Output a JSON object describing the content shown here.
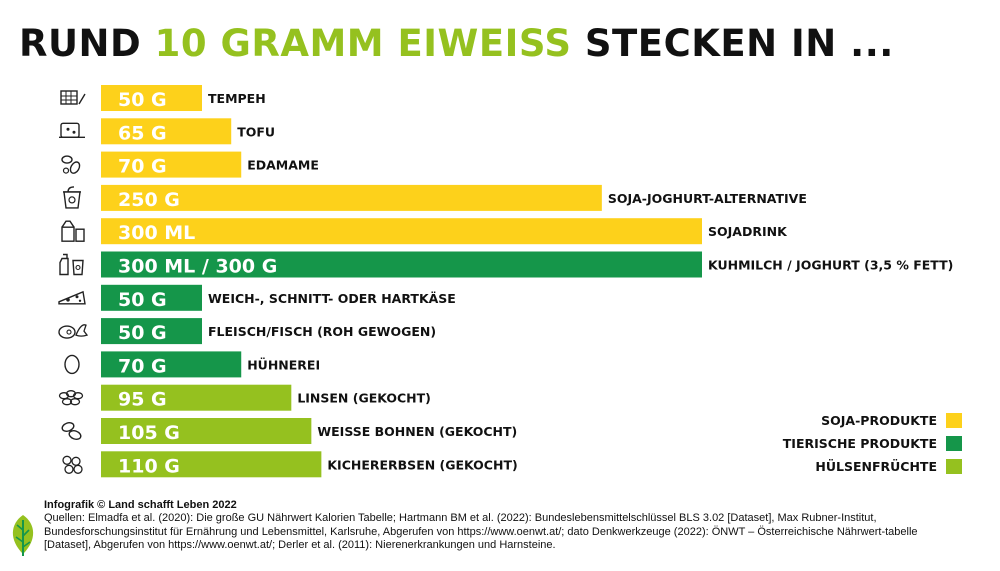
{
  "title": {
    "prefix": "RUND ",
    "highlight": "10 GRAMM EIWEISS",
    "suffix": " STECKEN IN ..."
  },
  "colors": {
    "soja": "#fdd11b",
    "tierisch": "#15964a",
    "huelsen": "#95c11f",
    "title_highlight": "#95c11f"
  },
  "legend": [
    {
      "label": "SOJA-PRODUKTE",
      "group": "soja"
    },
    {
      "label": "TIERISCHE PRODUKTE",
      "group": "tierisch"
    },
    {
      "label": "HÜLSENFRÜCHTE",
      "group": "huelsen"
    }
  ],
  "chart_data": {
    "type": "bar",
    "orientation": "horizontal",
    "grid": false,
    "legend_position": "bottom-right",
    "items": [
      {
        "value_label": "50 G",
        "value": 50,
        "name": "TEMPEH",
        "group": "soja",
        "icon": "tempeh-icon"
      },
      {
        "value_label": "65 G",
        "value": 65,
        "name": "TOFU",
        "group": "soja",
        "icon": "tofu-icon"
      },
      {
        "value_label": "70 G",
        "value": 70,
        "name": "EDAMAME",
        "group": "soja",
        "icon": "edamame-icon"
      },
      {
        "value_label": "250 G",
        "value": 250,
        "name": "SOJA-JOGHURT-ALTERNATIVE",
        "group": "soja",
        "icon": "yogurt-cup-icon"
      },
      {
        "value_label": "300 ML",
        "value": 300,
        "name": "SOJADRINK",
        "group": "soja",
        "icon": "drink-carton-icon"
      },
      {
        "value_label": "300 ML / 300 G",
        "value": 300,
        "name": "KUHMILCH / JOGHURT (3,5 % FETT)",
        "group": "tierisch",
        "icon": "milk-bottle-icon"
      },
      {
        "value_label": "50 G",
        "value": 50,
        "name": "WEICH-, SCHNITT- ODER HARTKÄSE",
        "group": "tierisch",
        "icon": "cheese-icon"
      },
      {
        "value_label": "50 G",
        "value": 50,
        "name": "FLEISCH/FISCH (ROH GEWOGEN)",
        "group": "tierisch",
        "icon": "meat-fish-icon"
      },
      {
        "value_label": "70 G",
        "value": 70,
        "name": "HÜHNEREI",
        "group": "tierisch",
        "icon": "egg-icon"
      },
      {
        "value_label": "95 G",
        "value": 95,
        "name": "LINSEN (GEKOCHT)",
        "group": "huelsen",
        "icon": "lentils-icon"
      },
      {
        "value_label": "105 G",
        "value": 105,
        "name": "WEISSE BOHNEN (GEKOCHT)",
        "group": "huelsen",
        "icon": "beans-icon"
      },
      {
        "value_label": "110 G",
        "value": 110,
        "name": "KICHERERBSEN (GEKOCHT)",
        "group": "huelsen",
        "icon": "chickpeas-icon"
      }
    ]
  },
  "footer": {
    "credit": "Infografik © Land schafft Leben 2022",
    "sources": "Quellen: Elmadfa et al. (2020): Die große GU Nährwert Kalorien Tabelle; Hartmann BM et al. (2022): Bundeslebensmittelschlüssel BLS 3.02 [Dataset], Max Rubner-Institut, Bundesforschungsinstitut für Ernährung und Lebensmittel, Karlsruhe, Abgerufen von https://www.oenwt.at/; dato Denkwerkzeuge (2022): ÖNWT – Österreichische Nährwert-tabelle [Dataset], Abgerufen von https://www.oenwt.at/; Derler et al. (2011): Nierenerkrankungen und Harnsteine."
  },
  "logo": {
    "icon": "leaf-logo-icon"
  }
}
